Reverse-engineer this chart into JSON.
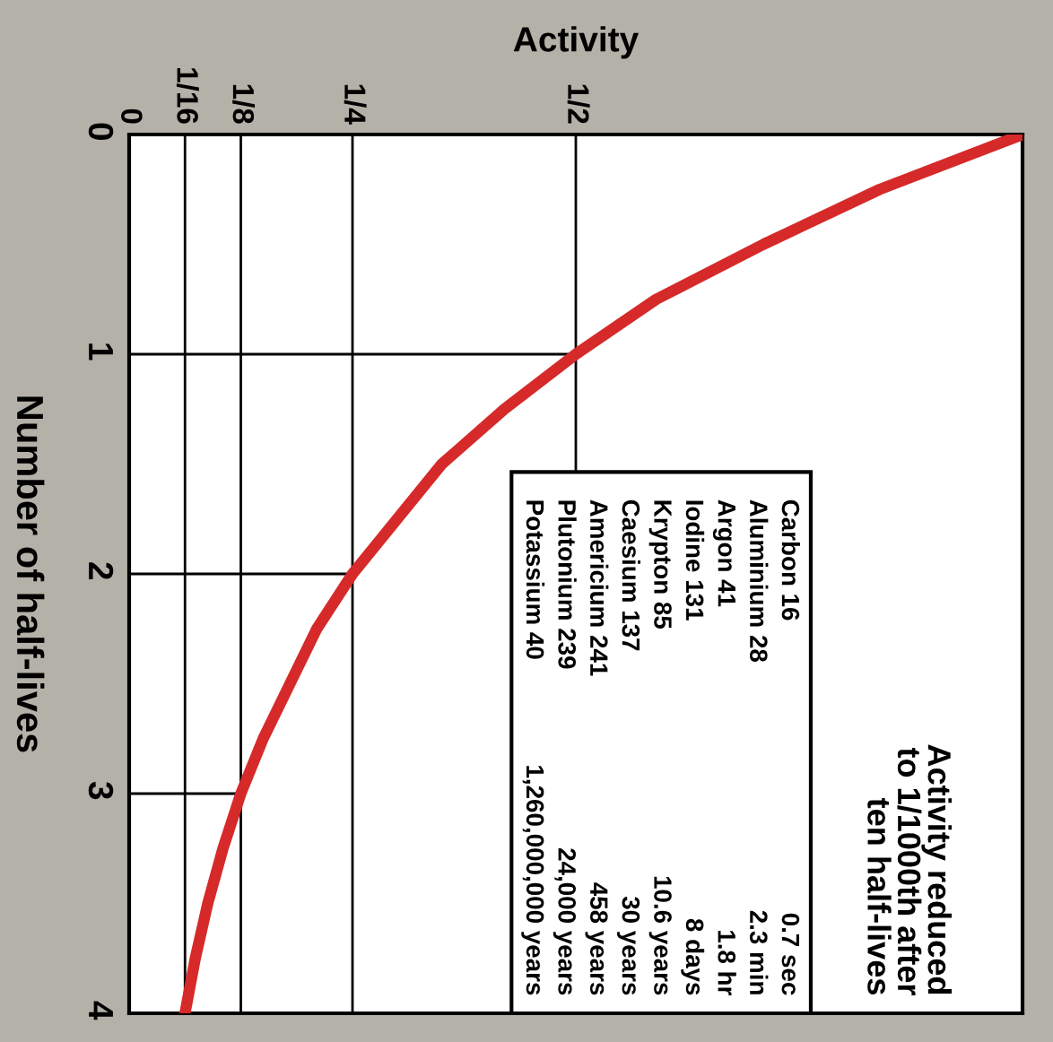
{
  "chart_data": {
    "type": "line",
    "xlabel": "Activity",
    "ylabel": "Number of half-lives",
    "x": [
      1,
      0.84,
      0.71,
      0.59,
      0.5,
      0.42,
      0.35,
      0.3,
      0.25,
      0.21,
      0.18,
      0.15,
      0.125,
      0.105,
      0.088,
      0.074,
      0.0625
    ],
    "series": [
      {
        "color": "#d62a2a",
        "values": [
          0,
          0.25,
          0.5,
          0.75,
          1,
          1.25,
          1.5,
          1.75,
          2,
          2.25,
          2.5,
          2.75,
          3,
          3.25,
          3.5,
          3.75,
          4
        ]
      }
    ],
    "xlim": [
      0,
      1
    ],
    "xticks": [
      0,
      {
        "value": 0.0625,
        "label": "1/16"
      },
      {
        "value": 0.125,
        "label": "1/8"
      },
      {
        "value": 0.25,
        "label": "1/4"
      },
      {
        "value": 0.5,
        "label": "1/2"
      }
    ],
    "ylim": [
      4,
      0
    ],
    "yticks": [
      0,
      1,
      2,
      3,
      4
    ],
    "grid": true,
    "marker": "none",
    "line_style": "solid",
    "annotations": [
      "Carbon 16",
      "0.7 sec",
      "Aluminium 28",
      "2.3 min",
      "Argon 41",
      "1.8 hr",
      "Iodine 131",
      "8 days",
      "Krypton 85",
      "10.6 years",
      "Caesium 137",
      "30 years",
      "Americium 241",
      "458 years",
      "Plutonium 239",
      "24,000 years",
      "Potassium 40",
      "1,260,000,000 years",
      "Activity reduced\nto 1/1000th after\nten half-lives"
    ]
  }
}
